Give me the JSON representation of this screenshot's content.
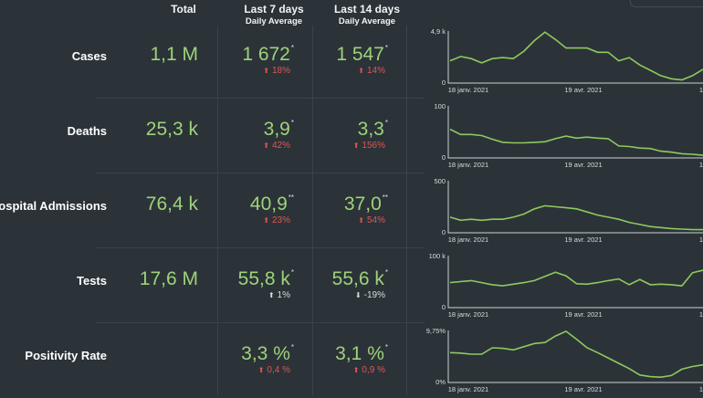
{
  "headers": {
    "total": "Total",
    "last7": "Last 7 days",
    "last7_sub": "Daily Average",
    "last14": "Last 14 days",
    "last14_sub": "Daily Average"
  },
  "colors": {
    "value": "#9fd27a",
    "increase": "#e15454",
    "neutral": "#d7dde0",
    "line": "#8ec95f"
  },
  "rows": [
    {
      "label": "Cases",
      "total": "1,1 M",
      "avg7": "1 672",
      "mark7": "*",
      "chg7": "18%",
      "chg7_arrow": "⬆",
      "chg7_dir": "up",
      "avg14": "1 547",
      "mark14": "*",
      "chg14": "14%",
      "chg14_arrow": "⬆",
      "chg14_dir": "up",
      "spark": {
        "ymax_label": "4,9 k",
        "ymin_label": "0",
        "ymax": 4900,
        "x_first": "18 janv. 2021",
        "x_mid": "19 avr. 2021",
        "x_last": "1",
        "values": [
          2100,
          2500,
          2300,
          1900,
          2300,
          2400,
          2300,
          3000,
          4000,
          4800,
          4100,
          3300,
          3300,
          3300,
          2900,
          2900,
          2100,
          2400,
          1700,
          1200,
          700,
          400,
          300,
          700,
          1300
        ]
      }
    },
    {
      "label": "Deaths",
      "total": "25,3 k",
      "avg7": "3,9",
      "mark7": "*",
      "chg7": "42%",
      "chg7_arrow": "⬆",
      "chg7_dir": "up",
      "avg14": "3,3",
      "mark14": "*",
      "chg14": "156%",
      "chg14_arrow": "⬆",
      "chg14_dir": "up",
      "spark": {
        "ymax_label": "100",
        "ymin_label": "0",
        "ymax": 100,
        "x_first": "18 janv. 2021",
        "x_mid": "19 avr. 2021",
        "x_last": "1",
        "values": [
          55,
          45,
          45,
          43,
          36,
          30,
          29,
          29,
          30,
          31,
          37,
          42,
          38,
          40,
          38,
          37,
          23,
          22,
          19,
          18,
          13,
          11,
          8,
          7,
          5
        ]
      }
    },
    {
      "label": "Hospital Admissions",
      "total": "76,4 k",
      "avg7": "40,9",
      "mark7": "**",
      "chg7": "23%",
      "chg7_arrow": "⬆",
      "chg7_dir": "up",
      "avg14": "37,0",
      "mark14": "**",
      "chg14": "54%",
      "chg14_arrow": "⬆",
      "chg14_dir": "up",
      "spark": {
        "ymax_label": "500",
        "ymin_label": "0",
        "ymax": 500,
        "x_first": "18 janv. 2021",
        "x_mid": "19 avr. 2021",
        "x_last": "1",
        "values": [
          150,
          120,
          130,
          120,
          130,
          130,
          150,
          180,
          230,
          260,
          250,
          240,
          230,
          200,
          170,
          150,
          130,
          100,
          80,
          60,
          50,
          40,
          35,
          30,
          30
        ]
      }
    },
    {
      "label": "Tests",
      "total": "17,6 M",
      "avg7": "55,8 k",
      "mark7": "*",
      "chg7": "1%",
      "chg7_arrow": "⬆",
      "chg7_dir": "neutral",
      "avg14": "55,6 k",
      "mark14": "*",
      "chg14": "-19%",
      "chg14_arrow": "⬇",
      "chg14_dir": "neutral",
      "spark": {
        "ymax_label": "100 k",
        "ymin_label": "0",
        "ymax": 100000,
        "x_first": "18 janv. 2021",
        "x_mid": "19 avr. 2021",
        "x_last": "1",
        "values": [
          48000,
          50000,
          52000,
          48000,
          44000,
          42000,
          45000,
          48000,
          52000,
          60000,
          68000,
          61000,
          46000,
          45000,
          48000,
          52000,
          55000,
          44000,
          54000,
          44000,
          45000,
          44000,
          42000,
          67000,
          72000
        ]
      }
    },
    {
      "label": "Positivity Rate",
      "total": "",
      "avg7": "3,3 %",
      "mark7": "*",
      "chg7": "0,4 %",
      "chg7_arrow": "⬆",
      "chg7_dir": "up",
      "avg14": "3,1 %",
      "mark14": "*",
      "chg14": "0,9 %",
      "chg14_arrow": "⬆",
      "chg14_dir": "up",
      "spark": {
        "ymax_label": "9,75%",
        "ymin_label": "0%",
        "ymax": 9.75,
        "x_first": "18 janv. 2021",
        "x_mid": "19 avr. 2021",
        "x_last": "1",
        "values": [
          5.6,
          5.5,
          5.3,
          5.3,
          6.5,
          6.4,
          6.1,
          6.7,
          7.3,
          7.5,
          8.7,
          9.6,
          8.1,
          6.5,
          5.6,
          4.6,
          3.6,
          2.6,
          1.4,
          1.1,
          1.0,
          1.3,
          2.5,
          3.0,
          3.3
        ]
      }
    }
  ]
}
